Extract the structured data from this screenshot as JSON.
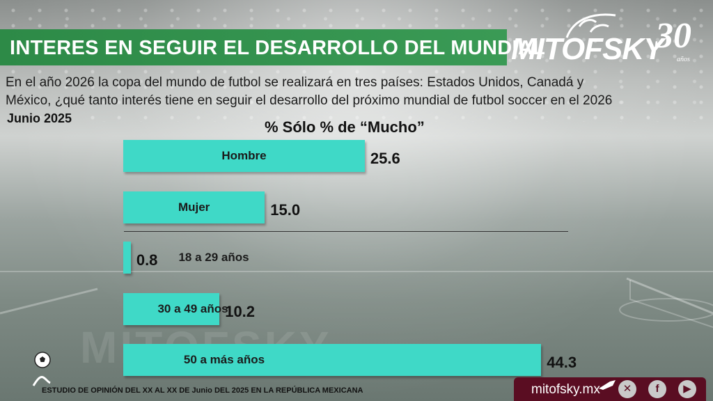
{
  "header": {
    "title": "INTERES EN SEGUIR EL DESARROLLO DEL MUNDIAL",
    "logo_text": "MITOFSKY",
    "logo_anniversary": "30",
    "logo_anniversary_suffix": "años"
  },
  "question_line1": "En el año 2026 la copa del mundo de futbol se realizará en tres países:  Estados Unidos, Canadá y",
  "question_line2": "México, ¿qué tanto interés tiene en seguir el desarrollo del próximo mundial de futbol soccer en el 2026",
  "date": "Junio 2025",
  "watermark": "MITOFSKY",
  "footer": {
    "study_note": "ESTUDIO DE OPINIÓN DEL XX AL XX DE Junio DEL 2025 EN LA REPÚBLICA MEXICANA",
    "site": "mitofsky.mx",
    "icons": [
      "x-icon",
      "facebook-icon",
      "youtube-icon"
    ],
    "box_color": "#5a0d22"
  },
  "colors": {
    "bar": "#3fd9c7",
    "title_band": "#34934f"
  },
  "chart_data": {
    "type": "bar",
    "orientation": "horizontal",
    "title": "% Sólo % de “Mucho”",
    "categories": [
      "Hombre",
      "Mujer",
      "18 a 29 años",
      "30 a 49 años",
      "50 a más años"
    ],
    "values": [
      25.6,
      15.0,
      0.8,
      10.2,
      44.3
    ],
    "value_labels": [
      "25.6",
      "15.0",
      "0.8",
      "10.2",
      "44.3"
    ],
    "group_separator_after_index": 1,
    "grid": false,
    "legend": false
  }
}
